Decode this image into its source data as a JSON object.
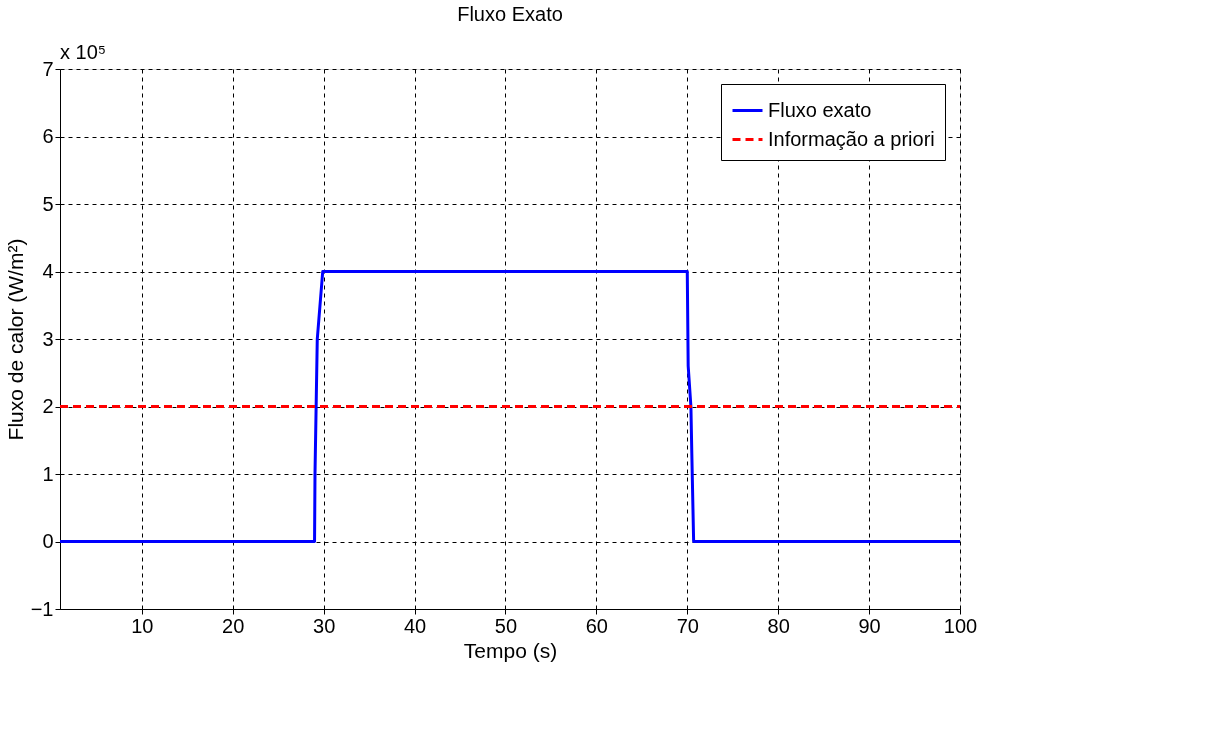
{
  "chart_data": {
    "type": "line",
    "title": "Fluxo Exato",
    "xlabel": "Tempo (s)",
    "ylabel": "Fluxo de calor (W/m²)",
    "annotations": [
      "x 10⁵"
    ],
    "series": [
      {
        "name": "Fluxo exato",
        "color": "#0000ff",
        "line_style": "solid",
        "x": [
          1,
          29,
          29.05,
          29.3,
          29.9,
          70,
          70.1,
          70.4,
          70.5,
          70.7,
          100
        ],
        "values": [
          0,
          0,
          1,
          3,
          4,
          4,
          2.6,
          2,
          1.3,
          0,
          0
        ]
      },
      {
        "name": "Informação a priori",
        "color": "#ff0000",
        "line_style": "dashed",
        "x": [
          1,
          100
        ],
        "values": [
          2,
          2
        ]
      }
    ],
    "xlim": [
      1,
      100
    ],
    "xticks": [
      10,
      20,
      30,
      40,
      50,
      60,
      70,
      80,
      90,
      100
    ],
    "ylim": [
      -1,
      7
    ],
    "yticks": [
      -1,
      0,
      1,
      2,
      3,
      4,
      5,
      6,
      7
    ],
    "grid": true,
    "legend": "top right",
    "marker": "none"
  }
}
